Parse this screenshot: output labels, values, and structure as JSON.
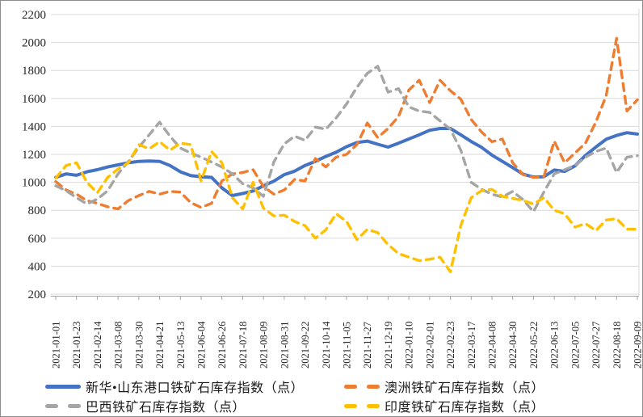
{
  "chart_data": {
    "type": "line",
    "title": "",
    "legend_position": "bottom",
    "grid": "horizontal",
    "y_axis": {
      "min": 200,
      "max": 2200,
      "step": 200,
      "tick_labels": [
        "200",
        "400",
        "600",
        "800",
        "1000",
        "1200",
        "1400",
        "1600",
        "1800",
        "2000",
        "2200"
      ]
    },
    "x_axis": {
      "tick_labels": [
        "2021-01-01",
        "2021-01-23",
        "2021-02-14",
        "2021-03-08",
        "2021-03-30",
        "2021-04-21",
        "2021-05-13",
        "2021-06-04",
        "2021-06-26",
        "2021-07-18",
        "2021-08-09",
        "2021-08-31",
        "2021-09-22",
        "2021-10-14",
        "2021-11-05",
        "2021-11-27",
        "2021-12-19",
        "2022-01-10",
        "2022-02-01",
        "2022-02-23",
        "2022-03-17",
        "2022-04-08",
        "2022-04-30",
        "2022-05-22",
        "2022-06-13",
        "2022-07-05",
        "2022-07-27",
        "2022-08-18",
        "2022-09-09"
      ]
    },
    "x_sample_dates": [
      "2021-01-01",
      "2021-01-12",
      "2021-01-23",
      "2021-02-03",
      "2021-02-14",
      "2021-02-25",
      "2021-03-08",
      "2021-03-19",
      "2021-03-30",
      "2021-04-10",
      "2021-04-21",
      "2021-05-02",
      "2021-05-13",
      "2021-05-24",
      "2021-06-04",
      "2021-06-15",
      "2021-06-26",
      "2021-07-07",
      "2021-07-18",
      "2021-07-29",
      "2021-08-09",
      "2021-08-20",
      "2021-08-31",
      "2021-09-11",
      "2021-09-22",
      "2021-10-03",
      "2021-10-14",
      "2021-10-25",
      "2021-11-05",
      "2021-11-16",
      "2021-11-27",
      "2021-12-08",
      "2021-12-19",
      "2021-12-30",
      "2022-01-10",
      "2022-01-21",
      "2022-02-01",
      "2022-02-12",
      "2022-02-23",
      "2022-03-06",
      "2022-03-17",
      "2022-03-28",
      "2022-04-08",
      "2022-04-19",
      "2022-04-30",
      "2022-05-11",
      "2022-05-22",
      "2022-06-02",
      "2022-06-13",
      "2022-06-24",
      "2022-07-05",
      "2022-07-16",
      "2022-07-27",
      "2022-08-07",
      "2022-08-18",
      "2022-08-29",
      "2022-09-09"
    ],
    "series": [
      {
        "key": "shandong",
        "name": "新华•山东港口铁矿石库存指数（点）",
        "color": "#4472C4",
        "style": "solid",
        "values": [
          1035,
          1060,
          1050,
          1075,
          1090,
          1110,
          1125,
          1140,
          1150,
          1152,
          1150,
          1120,
          1075,
          1048,
          1040,
          1035,
          960,
          905,
          920,
          938,
          975,
          1008,
          1055,
          1080,
          1120,
          1150,
          1185,
          1215,
          1255,
          1285,
          1295,
          1272,
          1252,
          1280,
          1310,
          1340,
          1372,
          1385,
          1385,
          1340,
          1292,
          1250,
          1195,
          1150,
          1105,
          1058,
          1038,
          1040,
          1088,
          1078,
          1118,
          1192,
          1252,
          1308,
          1335,
          1355,
          1345
        ]
      },
      {
        "key": "australia",
        "name": "澳洲铁矿石库存指数（点）",
        "color": "#ED7D31",
        "style": "dashed",
        "values": [
          1005,
          945,
          915,
          870,
          850,
          825,
          810,
          870,
          905,
          935,
          915,
          935,
          930,
          855,
          820,
          850,
          1010,
          1060,
          1070,
          1090,
          970,
          915,
          945,
          1020,
          1010,
          1170,
          1110,
          1180,
          1200,
          1270,
          1425,
          1320,
          1385,
          1470,
          1660,
          1730,
          1570,
          1730,
          1655,
          1595,
          1450,
          1360,
          1290,
          1310,
          1140,
          1055,
          1035,
          1040,
          1295,
          1140,
          1210,
          1280,
          1430,
          1620,
          2030,
          1510,
          1590
        ]
      },
      {
        "key": "brazil",
        "name": "巴西铁矿石库存指数（点）",
        "color": "#A5A5A5",
        "style": "dashed",
        "values": [
          975,
          940,
          890,
          845,
          880,
          940,
          1060,
          1150,
          1250,
          1340,
          1430,
          1330,
          1245,
          1210,
          1180,
          1145,
          1110,
          1060,
          990,
          960,
          900,
          1145,
          1275,
          1330,
          1300,
          1395,
          1380,
          1460,
          1560,
          1680,
          1780,
          1830,
          1645,
          1670,
          1540,
          1510,
          1500,
          1440,
          1380,
          1230,
          1000,
          950,
          915,
          895,
          935,
          875,
          790,
          930,
          1060,
          1090,
          1120,
          1180,
          1220,
          1245,
          1070,
          1180,
          1190
        ]
      },
      {
        "key": "india",
        "name": "印度铁矿石库存指数（点）",
        "color": "#FFC000",
        "style": "dashed",
        "values": [
          1030,
          1120,
          1140,
          1000,
          925,
          1035,
          1095,
          1140,
          1270,
          1240,
          1290,
          1230,
          1280,
          1270,
          1010,
          1220,
          1140,
          890,
          810,
          1000,
          815,
          760,
          765,
          720,
          690,
          600,
          660,
          775,
          720,
          590,
          663,
          640,
          555,
          490,
          465,
          440,
          450,
          465,
          360,
          690,
          890,
          940,
          950,
          900,
          885,
          870,
          845,
          890,
          800,
          775,
          680,
          705,
          655,
          730,
          740,
          665,
          665
        ]
      }
    ]
  }
}
